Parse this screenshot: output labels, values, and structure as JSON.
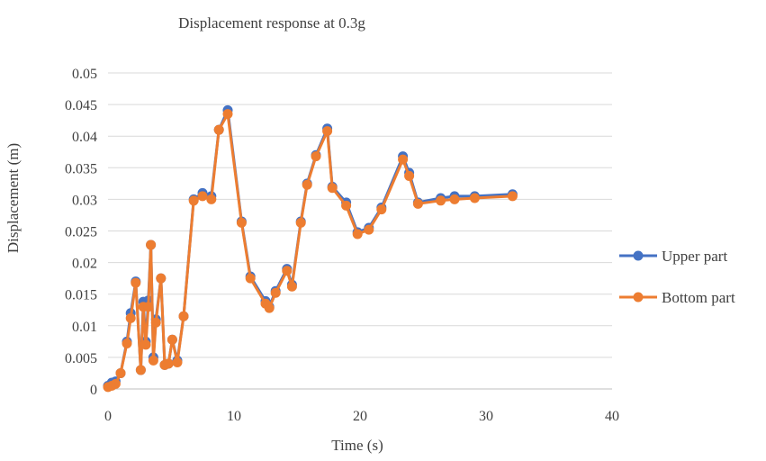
{
  "chart_data": {
    "type": "scatter",
    "title": "Displacement response at 0.3g",
    "xlabel": "Time (s)",
    "ylabel": "Displacement (m)",
    "xlim": [
      0,
      40
    ],
    "ylim": [
      0,
      0.05
    ],
    "x_ticks": [
      "0",
      "10",
      "20",
      "30",
      "40"
    ],
    "y_ticks": [
      "0",
      "0.005",
      "0.01",
      "0.015",
      "0.02",
      "0.025",
      "0.03",
      "0.035",
      "0.04",
      "0.045",
      "0.05"
    ],
    "x_tick_values": [
      0,
      10,
      20,
      30,
      40
    ],
    "y_tick_values": [
      0,
      0.005,
      0.01,
      0.015,
      0.02,
      0.025,
      0.03,
      0.035,
      0.04,
      0.045,
      0.05
    ],
    "grid": "horizontal",
    "legend_position": "right",
    "series": [
      {
        "name": "Upper part",
        "color": "#4472c4",
        "x": [
          0,
          0.3,
          0.6,
          1.0,
          1.5,
          1.8,
          2.2,
          2.6,
          2.8,
          3.0,
          3.2,
          3.4,
          3.6,
          3.8,
          4.2,
          4.5,
          4.8,
          5.1,
          5.5,
          6.0,
          6.8,
          7.5,
          8.2,
          8.8,
          9.5,
          10.6,
          11.3,
          12.5,
          12.8,
          13.3,
          14.2,
          14.6,
          15.3,
          15.8,
          16.5,
          17.4,
          17.8,
          18.9,
          19.8,
          20.7,
          21.7,
          23.4,
          23.9,
          24.6,
          26.4,
          27.5,
          29.1,
          32.1
        ],
        "y": [
          0.0005,
          0.001,
          0.0012,
          0.0025,
          0.0075,
          0.012,
          0.017,
          0.003,
          0.0138,
          0.0075,
          0.014,
          0.0228,
          0.005,
          0.011,
          0.0175,
          0.0038,
          0.004,
          0.0078,
          0.0045,
          0.0115,
          0.03,
          0.031,
          0.0305,
          0.041,
          0.0441,
          0.0265,
          0.0178,
          0.0139,
          0.013,
          0.0155,
          0.019,
          0.0165,
          0.0265,
          0.0325,
          0.037,
          0.0412,
          0.032,
          0.0295,
          0.0248,
          0.0255,
          0.0287,
          0.0368,
          0.0342,
          0.0295,
          0.0302,
          0.0305,
          0.0305,
          0.0308
        ]
      },
      {
        "name": "Bottom part",
        "color": "#ed7d31",
        "x": [
          0,
          0.3,
          0.6,
          1.0,
          1.5,
          1.8,
          2.2,
          2.6,
          2.8,
          3.0,
          3.2,
          3.4,
          3.6,
          3.8,
          4.2,
          4.5,
          4.8,
          5.1,
          5.5,
          6.0,
          6.8,
          7.5,
          8.2,
          8.8,
          9.5,
          10.6,
          11.3,
          12.5,
          12.8,
          13.3,
          14.2,
          14.6,
          15.3,
          15.8,
          16.5,
          17.4,
          17.8,
          18.9,
          19.8,
          20.7,
          21.7,
          23.4,
          23.9,
          24.6,
          26.4,
          27.5,
          29.1,
          32.1
        ],
        "y": [
          0.0003,
          0.0005,
          0.0008,
          0.0025,
          0.0072,
          0.0112,
          0.0168,
          0.003,
          0.013,
          0.007,
          0.013,
          0.0228,
          0.0045,
          0.0105,
          0.0175,
          0.0038,
          0.004,
          0.0078,
          0.0042,
          0.0115,
          0.0298,
          0.0305,
          0.03,
          0.041,
          0.0435,
          0.0263,
          0.0175,
          0.0135,
          0.0128,
          0.0152,
          0.0187,
          0.0162,
          0.0263,
          0.0323,
          0.0368,
          0.0408,
          0.0318,
          0.029,
          0.0245,
          0.0252,
          0.0284,
          0.0363,
          0.0337,
          0.0293,
          0.0298,
          0.03,
          0.0302,
          0.0305
        ]
      }
    ]
  }
}
